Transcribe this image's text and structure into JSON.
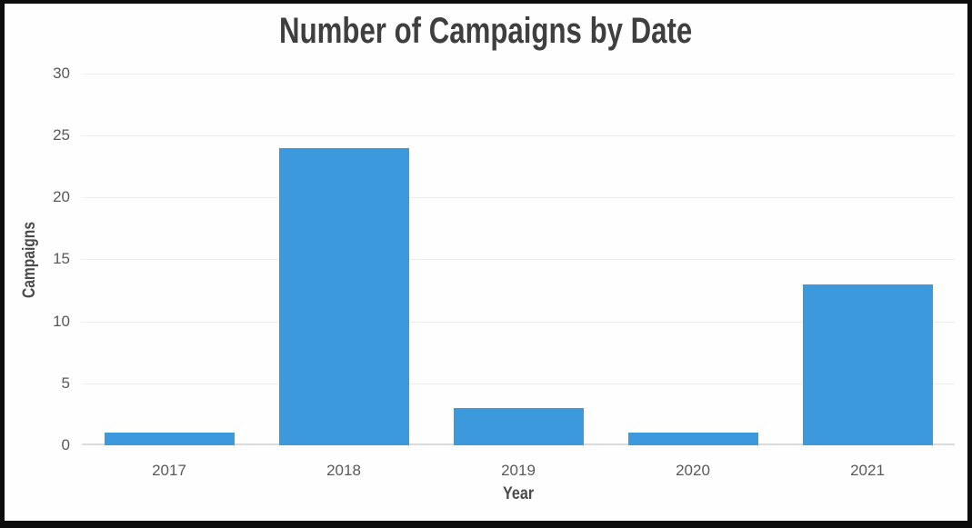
{
  "chart_data": {
    "type": "bar",
    "title": "Number of Campaigns by Date",
    "xlabel": "Year",
    "ylabel": "Campaigns",
    "categories": [
      "2017",
      "2018",
      "2019",
      "2020",
      "2021"
    ],
    "values": [
      1,
      24,
      3,
      1,
      13
    ],
    "ylim": [
      0,
      30
    ],
    "yticks": [
      0,
      5,
      10,
      15,
      20,
      25,
      30
    ],
    "grid": "horizontal",
    "legend": "none",
    "bar_color": "#3c99db",
    "gridline_color": "#ececec",
    "baseline_color": "#dcdcdc",
    "title_color": "#3f3f3f",
    "axis_title_color": "#4a4a4a",
    "tick_label_color": "#595959",
    "frame_color": "#0d0d0d",
    "background_color": "#fefefe"
  }
}
